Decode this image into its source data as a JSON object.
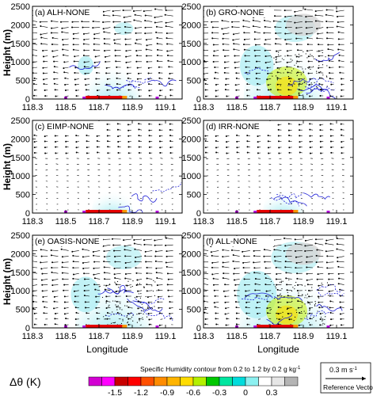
{
  "chart_data": {
    "type": "contour-vector-panels",
    "panels": [
      {
        "label": "(a) ALH-NONE",
        "intensity": 0.4,
        "blue": 0.45
      },
      {
        "label": "(b) GRO-NONE",
        "intensity": 0.85,
        "blue": 0.7
      },
      {
        "label": "(c) EIMP-NONE",
        "intensity": 0.12,
        "blue": 0.1
      },
      {
        "label": "(d) IRR-NONE",
        "intensity": 0.12,
        "blue": 0.25
      },
      {
        "label": "(e) OASIS-NONE",
        "intensity": 0.75,
        "blue": 0.65
      },
      {
        "label": "(f) ALL-NONE",
        "intensity": 1.0,
        "blue": 0.85
      }
    ],
    "xlabel": "Longitude",
    "ylabel": "Height (m)",
    "x_ticks": [
      "118.3",
      "118.5",
      "118.7",
      "118.9",
      "119.1"
    ],
    "x_tick_values": [
      118.3,
      118.5,
      118.7,
      118.9,
      119.1
    ],
    "xlim": [
      118.3,
      119.2
    ],
    "y_ticks": [
      "0",
      "500",
      "1000",
      "1500",
      "2000",
      "2500"
    ],
    "y_tick_values": [
      0,
      500,
      1000,
      1500,
      2000,
      2500
    ],
    "ylim": [
      0,
      2500
    ],
    "colorbar": {
      "title": "Δθ (K)",
      "tick_labels": [
        "-1.5",
        "-1.2",
        "-0.9",
        "-0.6",
        "-0.3",
        "0",
        "0.3"
      ],
      "colors": [
        "#d200d2",
        "#ff00ff",
        "#c80000",
        "#ff0000",
        "#ff5000",
        "#ff8c00",
        "#ffb400",
        "#ffdc00",
        "#b4f000",
        "#00c800",
        "#00e6a0",
        "#00dcdc",
        "#8cf0f0",
        "#ffffff",
        "#e6e6e6",
        "#b4b4b4"
      ]
    },
    "contour_note": "Specific Humidity contour from 0.2 to 1.2 by 0.2 g kg",
    "contour_note_sup": "-1",
    "reference_vector": {
      "value": "0.3 m s",
      "sup": "-1",
      "caption": "Reference Vector"
    },
    "grid": false,
    "legend_position": "bottom"
  },
  "colors": {
    "shade_light": "#a8ecf2",
    "shade_mid": "#5fdbe6",
    "contour": "#1f1fd6",
    "axis": "#000000"
  }
}
